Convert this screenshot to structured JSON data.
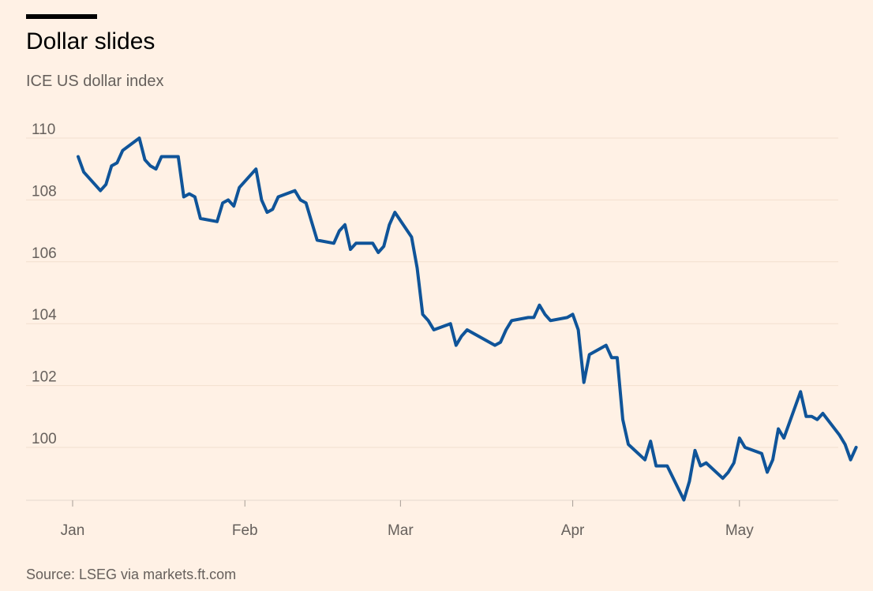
{
  "header": {
    "title": "Dollar slides",
    "subtitle": "ICE US dollar index"
  },
  "footer": {
    "source": "Source: LSEG via markets.ft.com"
  },
  "colors": {
    "background": "#FFF1E5",
    "line": "#0F5499",
    "text": "#66605C",
    "grid": "#F2DFCE"
  },
  "chart_data": {
    "type": "line",
    "title": "Dollar slides",
    "subtitle": "ICE US dollar index",
    "xlabel": "",
    "ylabel": "",
    "ylim": [
      98.2,
      110
    ],
    "yticks": [
      "110",
      "108",
      "106",
      "104",
      "102",
      "100"
    ],
    "xticks": [
      "Jan",
      "Feb",
      "Mar",
      "Apr",
      "May"
    ],
    "grid": true,
    "series": [
      {
        "name": "",
        "points": [
          [
            "2025-01-02",
            109.4
          ],
          [
            "2025-01-03",
            108.9
          ],
          [
            "2025-01-06",
            108.3
          ],
          [
            "2025-01-07",
            108.5
          ],
          [
            "2025-01-08",
            109.1
          ],
          [
            "2025-01-09",
            109.2
          ],
          [
            "2025-01-10",
            109.6
          ],
          [
            "2025-01-13",
            110.0
          ],
          [
            "2025-01-14",
            109.3
          ],
          [
            "2025-01-15",
            109.1
          ],
          [
            "2025-01-16",
            109.0
          ],
          [
            "2025-01-17",
            109.4
          ],
          [
            "2025-01-20",
            109.4
          ],
          [
            "2025-01-21",
            108.1
          ],
          [
            "2025-01-22",
            108.2
          ],
          [
            "2025-01-23",
            108.1
          ],
          [
            "2025-01-24",
            107.4
          ],
          [
            "2025-01-27",
            107.3
          ],
          [
            "2025-01-28",
            107.9
          ],
          [
            "2025-01-29",
            108.0
          ],
          [
            "2025-01-30",
            107.8
          ],
          [
            "2025-01-31",
            108.4
          ],
          [
            "2025-02-03",
            109.0
          ],
          [
            "2025-02-04",
            108.0
          ],
          [
            "2025-02-05",
            107.6
          ],
          [
            "2025-02-06",
            107.7
          ],
          [
            "2025-02-07",
            108.1
          ],
          [
            "2025-02-10",
            108.3
          ],
          [
            "2025-02-11",
            108.0
          ],
          [
            "2025-02-12",
            107.9
          ],
          [
            "2025-02-13",
            107.3
          ],
          [
            "2025-02-14",
            106.7
          ],
          [
            "2025-02-17",
            106.6
          ],
          [
            "2025-02-18",
            107.0
          ],
          [
            "2025-02-19",
            107.2
          ],
          [
            "2025-02-20",
            106.4
          ],
          [
            "2025-02-21",
            106.6
          ],
          [
            "2025-02-24",
            106.6
          ],
          [
            "2025-02-25",
            106.3
          ],
          [
            "2025-02-26",
            106.5
          ],
          [
            "2025-02-27",
            107.2
          ],
          [
            "2025-02-28",
            107.6
          ],
          [
            "2025-03-03",
            106.8
          ],
          [
            "2025-03-04",
            105.8
          ],
          [
            "2025-03-05",
            104.3
          ],
          [
            "2025-03-06",
            104.1
          ],
          [
            "2025-03-07",
            103.8
          ],
          [
            "2025-03-10",
            104.0
          ],
          [
            "2025-03-11",
            103.3
          ],
          [
            "2025-03-12",
            103.6
          ],
          [
            "2025-03-13",
            103.8
          ],
          [
            "2025-03-14",
            103.7
          ],
          [
            "2025-03-17",
            103.4
          ],
          [
            "2025-03-18",
            103.3
          ],
          [
            "2025-03-19",
            103.4
          ],
          [
            "2025-03-20",
            103.8
          ],
          [
            "2025-03-21",
            104.1
          ],
          [
            "2025-03-24",
            104.2
          ],
          [
            "2025-03-25",
            104.2
          ],
          [
            "2025-03-26",
            104.6
          ],
          [
            "2025-03-27",
            104.3
          ],
          [
            "2025-03-28",
            104.1
          ],
          [
            "2025-03-31",
            104.2
          ],
          [
            "2025-04-01",
            104.3
          ],
          [
            "2025-04-02",
            103.8
          ],
          [
            "2025-04-03",
            102.1
          ],
          [
            "2025-04-04",
            103.0
          ],
          [
            "2025-04-07",
            103.3
          ],
          [
            "2025-04-08",
            102.9
          ],
          [
            "2025-04-09",
            102.9
          ],
          [
            "2025-04-10",
            100.9
          ],
          [
            "2025-04-11",
            100.1
          ],
          [
            "2025-04-14",
            99.6
          ],
          [
            "2025-04-15",
            100.2
          ],
          [
            "2025-04-16",
            99.4
          ],
          [
            "2025-04-17",
            99.4
          ],
          [
            "2025-04-18",
            99.4
          ],
          [
            "2025-04-21",
            98.3
          ],
          [
            "2025-04-22",
            98.9
          ],
          [
            "2025-04-23",
            99.9
          ],
          [
            "2025-04-24",
            99.4
          ],
          [
            "2025-04-25",
            99.5
          ],
          [
            "2025-04-28",
            99.0
          ],
          [
            "2025-04-29",
            99.2
          ],
          [
            "2025-04-30",
            99.5
          ],
          [
            "2025-05-01",
            100.3
          ],
          [
            "2025-05-02",
            100.0
          ],
          [
            "2025-05-05",
            99.8
          ],
          [
            "2025-05-06",
            99.2
          ],
          [
            "2025-05-07",
            99.6
          ],
          [
            "2025-05-08",
            100.6
          ],
          [
            "2025-05-09",
            100.3
          ],
          [
            "2025-05-12",
            101.8
          ],
          [
            "2025-05-13",
            101.0
          ],
          [
            "2025-05-14",
            101.0
          ],
          [
            "2025-05-15",
            100.9
          ],
          [
            "2025-05-16",
            101.1
          ],
          [
            "2025-05-19",
            100.4
          ],
          [
            "2025-05-20",
            100.1
          ],
          [
            "2025-05-21",
            99.6
          ],
          [
            "2025-05-22",
            100.0
          ]
        ]
      }
    ]
  }
}
